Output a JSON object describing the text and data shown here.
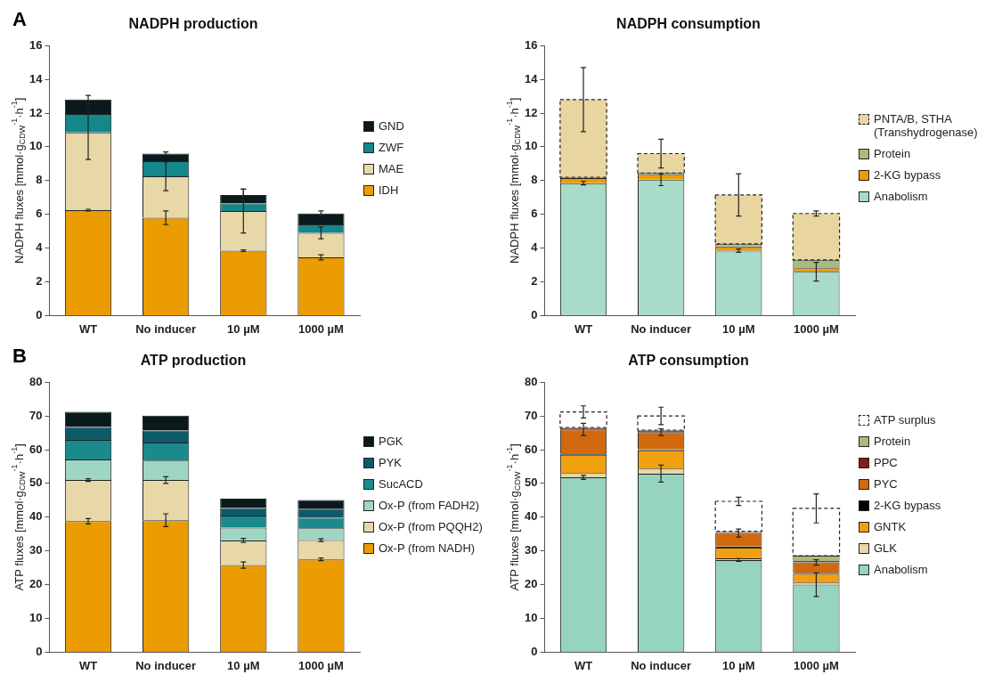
{
  "chart_data": [
    {
      "type": "bar",
      "title": "NADPH production",
      "ylabel": "NADPH fluxes [mmol·g$_{CDW}$$^{-1}$·h$^{-1}$]",
      "annotations": [
        "A"
      ],
      "categories": [
        "WT",
        "No inducer",
        "10 µM",
        "1000 µM"
      ],
      "stacked": true,
      "ylim": [
        0,
        16
      ],
      "yticks": [
        0,
        2,
        4,
        6,
        8,
        10,
        12,
        14,
        16
      ],
      "grid": false,
      "legend": "right",
      "series": [
        {
          "name": "IDH",
          "color": "#eb9c00",
          "values": [
            6.25,
            5.8,
            3.85,
            3.45
          ],
          "errors": [
            0.05,
            0.4,
            0.05,
            0.15
          ]
        },
        {
          "name": "MAE",
          "color": "#e8d8a8",
          "values": [
            4.6,
            2.45,
            2.35,
            1.45
          ],
          "errors": [
            1.6,
            0.85,
            1.3,
            0.35
          ]
        },
        {
          "name": "ZWF",
          "color": "#14878a",
          "values": [
            1.1,
            0.9,
            0.45,
            0.5
          ]
        },
        {
          "name": "GND",
          "color": "#0a1a1c",
          "values": [
            0.85,
            0.45,
            0.5,
            0.65
          ],
          "errors": [
            0.25,
            0.1,
            0.35,
            0.15
          ]
        }
      ]
    },
    {
      "type": "bar",
      "title": "NADPH consumption",
      "ylabel": "NADPH fluxes [mmol·g$_{CDW}$$^{-1}$·h$^{-1}$]",
      "categories": [
        "WT",
        "No inducer",
        "10 µM",
        "1000 µM"
      ],
      "stacked": true,
      "ylim": [
        0,
        16
      ],
      "yticks": [
        0,
        2,
        4,
        6,
        8,
        10,
        12,
        14,
        16
      ],
      "grid": false,
      "legend": "right",
      "series": [
        {
          "name": "Anabolism",
          "color": "#a8dcc8",
          "values": [
            7.85,
            8.05,
            3.85,
            2.6
          ],
          "errors": [
            0.1,
            0.35,
            0.1,
            0.55
          ]
        },
        {
          "name": "2-KG bypass",
          "color": "#eb9c00",
          "values": [
            0.3,
            0.3,
            0.25,
            0.2
          ]
        },
        {
          "name": "Protein",
          "color": "#a9bb7c",
          "values": [
            0.05,
            0.1,
            0.15,
            0.5
          ]
        },
        {
          "name": "PNTA/B, STHA (Transhydrogenase)",
          "color": "#e8d5a0",
          "line_style": "dashed",
          "values": [
            4.6,
            1.15,
            2.9,
            2.75
          ],
          "errors": [
            1.9,
            0.85,
            1.25,
            0.15
          ]
        }
      ]
    },
    {
      "type": "bar",
      "title": "ATP production",
      "ylabel": "ATP fluxes [mmol·g$_{CDW}$$^{-1}$·h$^{-1}$]",
      "annotations": [
        "B"
      ],
      "categories": [
        "WT",
        "No inducer",
        "10 µM",
        "1000 µM"
      ],
      "stacked": true,
      "ylim": [
        0,
        80
      ],
      "yticks": [
        0,
        10,
        20,
        30,
        40,
        50,
        60,
        70,
        80
      ],
      "grid": false,
      "legend": "right",
      "series": [
        {
          "name": "Ox-P (from NADH)",
          "color": "#eb9c00",
          "values": [
            38.8,
            39.1,
            25.8,
            27.5
          ],
          "errors": [
            0.8,
            1.9,
            0.9,
            0.4
          ]
        },
        {
          "name": "Ox-P (from PQQH2)",
          "color": "#e8d8a8",
          "values": [
            12.2,
            11.9,
            7.3,
            5.7
          ],
          "errors": [
            0.4,
            1.0,
            0.6,
            0.4
          ]
        },
        {
          "name": "Ox-P (from FADH2)",
          "color": "#9fd6c3",
          "values": [
            6.1,
            5.8,
            3.8,
            3.5
          ]
        },
        {
          "name": "SucACD",
          "color": "#1a8a8c",
          "values": [
            5.8,
            5.3,
            3.6,
            3.1
          ]
        },
        {
          "name": "PYK",
          "color": "#0f5a6a",
          "values": [
            3.8,
            3.6,
            2.2,
            2.7
          ]
        },
        {
          "name": "PGK",
          "color": "#0a1a1c",
          "values": [
            4.5,
            4.4,
            2.8,
            2.6
          ]
        }
      ]
    },
    {
      "type": "bar",
      "title": "ATP consumption",
      "ylabel": "ATP fluxes [mmol·g$_{CDW}$$^{-1}$·h$^{-1}$]",
      "categories": [
        "WT",
        "No inducer",
        "10 µM",
        "1000 µM"
      ],
      "stacked": true,
      "ylim": [
        0,
        80
      ],
      "yticks": [
        0,
        10,
        20,
        30,
        40,
        50,
        60,
        70,
        80
      ],
      "grid": false,
      "legend": "right",
      "series": [
        {
          "name": "Anabolism",
          "color": "#96d4bf",
          "values": [
            51.8,
            52.9,
            27.3,
            20.0
          ],
          "errors": [
            0.6,
            2.5,
            0.4,
            3.5
          ]
        },
        {
          "name": "GLK",
          "color": "#e8d8a8",
          "values": [
            1.3,
            1.5,
            0.5,
            0.6
          ]
        },
        {
          "name": "GNTK",
          "color": "#f0a010",
          "values": [
            5.4,
            5.4,
            3.2,
            2.6
          ]
        },
        {
          "name": "2-KG bypass",
          "color": "#000000",
          "values": [
            0.4,
            0.3,
            0.3,
            0.3
          ]
        },
        {
          "name": "PYC",
          "color": "#d2690f",
          "values": [
            7.1,
            5.1,
            4.0,
            3.1
          ],
          "errors": [
            1.8,
            1.0,
            1.2,
            0.8
          ]
        },
        {
          "name": "PPC",
          "color": "#8b1a1a",
          "values": [
            0.4,
            0.4,
            0.3,
            0.4
          ]
        },
        {
          "name": "Protein",
          "color": "#a9bb7c",
          "values": [
            0.2,
            0.2,
            0.2,
            1.6
          ]
        },
        {
          "name": "ATP surplus",
          "color": "#ffffff",
          "line_style": "dashed",
          "values": [
            4.6,
            4.2,
            8.9,
            14.0
          ],
          "errors": [
            1.8,
            2.6,
            1.2,
            4.3
          ]
        }
      ]
    }
  ]
}
